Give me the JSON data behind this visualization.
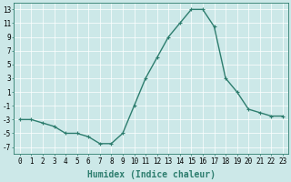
{
  "x": [
    0,
    1,
    2,
    3,
    4,
    5,
    6,
    7,
    8,
    9,
    10,
    11,
    12,
    13,
    14,
    15,
    16,
    17,
    18,
    19,
    20,
    21,
    22,
    23
  ],
  "y": [
    -3,
    -3,
    -3.5,
    -4,
    -5,
    -5,
    -5.5,
    -6.5,
    -6.5,
    -5,
    -1,
    3,
    6,
    9,
    11,
    13,
    13,
    10.5,
    3,
    1,
    -1.5,
    -2,
    -2.5,
    -2.5
  ],
  "line_color": "#2d7d6e",
  "marker": "+",
  "markersize": 3,
  "markeredgewidth": 0.8,
  "linewidth": 1.0,
  "background_color": "#cce8e8",
  "grid_color": "#ffffff",
  "xlabel": "Humidex (Indice chaleur)",
  "xlabel_fontsize": 7,
  "xlabel_fontweight": "bold",
  "xtick_labels": [
    "0",
    "1",
    "2",
    "3",
    "4",
    "5",
    "6",
    "7",
    "8",
    "9",
    "10",
    "11",
    "12",
    "13",
    "14",
    "15",
    "16",
    "17",
    "18",
    "19",
    "20",
    "21",
    "22",
    "23"
  ],
  "yticks": [
    -7,
    -5,
    -3,
    -1,
    1,
    3,
    5,
    7,
    9,
    11,
    13
  ],
  "ylim": [
    -8,
    14
  ],
  "xlim": [
    -0.5,
    23.5
  ],
  "tick_fontsize": 5.5,
  "spine_color": "#2d7d6e",
  "grid_linewidth": 0.5
}
